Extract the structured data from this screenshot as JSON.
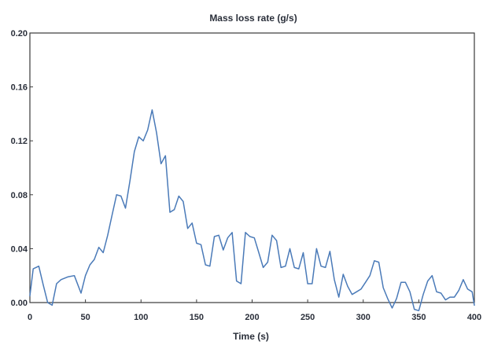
{
  "chart_data": {
    "type": "line",
    "title": "Mass loss rate (g/s)",
    "xlabel": "Time (s)",
    "ylabel": "",
    "xlim": [
      0,
      400
    ],
    "ylim": [
      0,
      0.2
    ],
    "x_ticks": [
      0,
      50,
      100,
      150,
      200,
      250,
      300,
      350,
      400
    ],
    "y_ticks": [
      0.0,
      0.04,
      0.08,
      0.12,
      0.16,
      0.2
    ],
    "x_tick_labels": [
      "0",
      "50",
      "100",
      "150",
      "200",
      "250",
      "300",
      "350",
      "400"
    ],
    "y_tick_labels": [
      "0.00",
      "0.04",
      "0.08",
      "0.12",
      "0.16",
      "0.20"
    ],
    "grid": false,
    "legend": "none",
    "series": [
      {
        "color": "#4a7ab8",
        "x": [
          0,
          3,
          8,
          12,
          16,
          20,
          24,
          28,
          34,
          40,
          46,
          50,
          54,
          58,
          62,
          66,
          70,
          74,
          78,
          82,
          86,
          90,
          94,
          98,
          102,
          106,
          110,
          114,
          118,
          122,
          126,
          130,
          134,
          138,
          142,
          146,
          150,
          154,
          158,
          162,
          166,
          170,
          174,
          178,
          182,
          186,
          190,
          194,
          198,
          202,
          206,
          210,
          214,
          218,
          222,
          226,
          230,
          234,
          238,
          242,
          246,
          250,
          254,
          258,
          262,
          266,
          270,
          274,
          278,
          282,
          286,
          290,
          294,
          298,
          302,
          306,
          310,
          314,
          318,
          322,
          326,
          330,
          334,
          338,
          342,
          346,
          350,
          354,
          358,
          362,
          366,
          370,
          374,
          378,
          382,
          386,
          390,
          394,
          398,
          400
        ],
        "values": [
          0.005,
          0.025,
          0.027,
          0.013,
          0.0,
          -0.002,
          0.014,
          0.017,
          0.019,
          0.02,
          0.007,
          0.02,
          0.028,
          0.032,
          0.041,
          0.037,
          0.05,
          0.065,
          0.08,
          0.079,
          0.07,
          0.09,
          0.112,
          0.123,
          0.12,
          0.128,
          0.143,
          0.126,
          0.103,
          0.109,
          0.067,
          0.069,
          0.079,
          0.075,
          0.055,
          0.059,
          0.044,
          0.043,
          0.028,
          0.027,
          0.049,
          0.05,
          0.039,
          0.048,
          0.052,
          0.016,
          0.014,
          0.052,
          0.049,
          0.048,
          0.037,
          0.026,
          0.03,
          0.05,
          0.046,
          0.026,
          0.027,
          0.04,
          0.026,
          0.025,
          0.037,
          0.014,
          0.014,
          0.04,
          0.027,
          0.026,
          0.038,
          0.017,
          0.004,
          0.021,
          0.012,
          0.006,
          0.008,
          0.01,
          0.015,
          0.02,
          0.031,
          0.03,
          0.011,
          0.003,
          -0.004,
          0.003,
          0.015,
          0.015,
          0.008,
          -0.005,
          -0.006,
          0.006,
          0.016,
          0.02,
          0.008,
          0.007,
          0.002,
          0.004,
          0.004,
          0.009,
          0.017,
          0.01,
          0.008,
          -0.002
        ]
      }
    ]
  }
}
